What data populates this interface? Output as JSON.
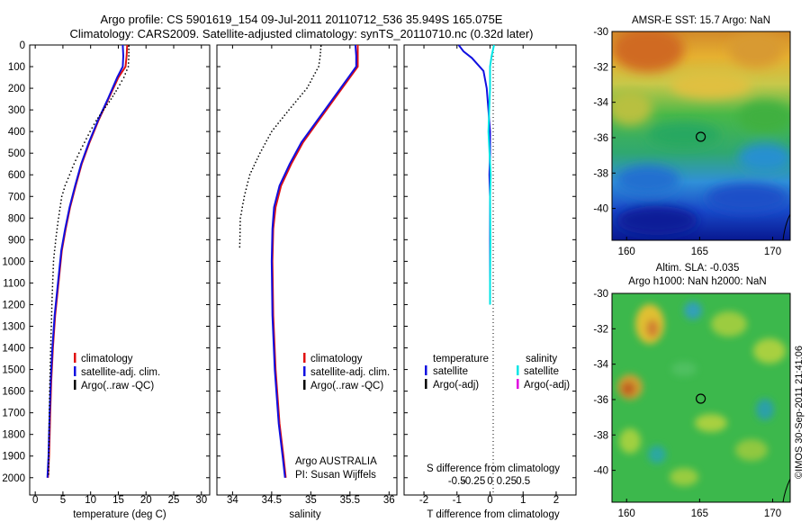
{
  "header": {
    "line1": "Argo profile: CS 5901619_154 09-Jul-2011 20110712_536 35.949S 165.075E",
    "line2": "Climatology: CARS2009. Satellite-adjusted climatology: synTS_20110710.nc (0.32d later)"
  },
  "colors": {
    "climatology": "#e01010",
    "satellite": "#1010e0",
    "argo": "#000000",
    "satellite_salinity": "#00e5e5",
    "argo_salinity": "#e000e0"
  },
  "chart_data": [
    {
      "id": "temperature",
      "type": "line",
      "xlabel": "temperature (deg C)",
      "ylabel": "",
      "xlim": [
        -1,
        31.5
      ],
      "ylim": [
        2080,
        0
      ],
      "xticks": [
        "0",
        "5",
        "10",
        "15",
        "20",
        "25",
        "30"
      ],
      "xtick_values": [
        0,
        5,
        10,
        15,
        20,
        25,
        30
      ],
      "yticks": [
        "0",
        "100",
        "200",
        "300",
        "400",
        "500",
        "600",
        "700",
        "800",
        "900",
        "1000",
        "1100",
        "1200",
        "1300",
        "1400",
        "1500",
        "1600",
        "1700",
        "1800",
        "1900",
        "2000"
      ],
      "ytick_values": [
        0,
        100,
        200,
        300,
        400,
        500,
        600,
        700,
        800,
        900,
        1000,
        1100,
        1200,
        1300,
        1400,
        1500,
        1600,
        1700,
        1800,
        1900,
        2000
      ],
      "legend": [
        "climatology",
        "satellite-adj. clim.",
        "Argo(..raw -QC)"
      ],
      "series": [
        {
          "name": "climatology",
          "style": "line",
          "x": [
            16.6,
            16.5,
            16.3,
            15.0,
            13.2,
            11.4,
            9.8,
            8.4,
            7.3,
            6.3,
            5.5,
            4.8,
            4.2,
            3.6,
            3.2,
            2.9,
            2.7,
            2.6,
            2.5,
            2.4,
            2.3
          ],
          "y": [
            0,
            50,
            100,
            150,
            250,
            350,
            450,
            550,
            650,
            750,
            850,
            950,
            1100,
            1250,
            1400,
            1550,
            1700,
            1800,
            1900,
            1950,
            2000
          ]
        },
        {
          "name": "satellite-adj. clim.",
          "style": "line",
          "x": [
            15.8,
            15.9,
            15.8,
            14.8,
            13.1,
            11.3,
            9.7,
            8.3,
            7.2,
            6.2,
            5.4,
            4.7,
            4.1,
            3.5,
            3.1,
            2.8,
            2.6,
            2.5,
            2.4,
            2.3,
            2.2
          ],
          "y": [
            0,
            50,
            100,
            150,
            250,
            350,
            450,
            550,
            650,
            750,
            850,
            950,
            1100,
            1250,
            1400,
            1550,
            1700,
            1800,
            1900,
            1950,
            2000
          ]
        },
        {
          "name": "Argo(..raw -QC)",
          "style": "dots",
          "x": [
            16.9,
            16.9,
            16.8,
            16.0,
            14.9,
            13.7,
            12.3,
            11.0,
            9.9,
            8.9,
            7.9,
            7.0,
            6.2,
            5.4,
            4.8,
            4.2,
            3.7,
            3.3,
            3.0,
            2.8,
            2.6,
            2.5,
            2.4
          ],
          "y": [
            5,
            50,
            100,
            150,
            200,
            250,
            300,
            350,
            400,
            450,
            500,
            550,
            600,
            650,
            700,
            800,
            900,
            1000,
            1200,
            1400,
            1600,
            1800,
            2000
          ]
        }
      ]
    },
    {
      "id": "salinity",
      "type": "line",
      "xlabel": "salinity",
      "ylabel": "",
      "xlim": [
        33.8,
        36.1
      ],
      "ylim": [
        2080,
        0
      ],
      "xticks": [
        "34",
        "34.5",
        "35",
        "35.5",
        "36"
      ],
      "xtick_values": [
        34,
        34.5,
        35,
        35.5,
        36
      ],
      "legend": [
        "climatology",
        "satellite-adj. clim.",
        "Argo(..raw -QC)"
      ],
      "annotation": [
        "Argo AUSTRALIA",
        "PI: Susan Wijffels"
      ],
      "series": [
        {
          "name": "climatology",
          "style": "line",
          "x": [
            35.6,
            35.6,
            35.6,
            35.5,
            35.3,
            35.1,
            34.9,
            34.75,
            34.62,
            34.55,
            34.52,
            34.51,
            34.52,
            34.55,
            34.6,
            34.65,
            34.68
          ],
          "y": [
            0,
            50,
            100,
            150,
            250,
            350,
            450,
            550,
            650,
            750,
            850,
            1000,
            1250,
            1500,
            1750,
            1900,
            2000
          ]
        },
        {
          "name": "satellite-adj. clim.",
          "style": "line",
          "x": [
            35.57,
            35.58,
            35.58,
            35.48,
            35.28,
            35.08,
            34.88,
            34.73,
            34.6,
            34.53,
            34.51,
            34.5,
            34.51,
            34.54,
            34.59,
            34.64,
            34.67
          ],
          "y": [
            0,
            50,
            100,
            150,
            250,
            350,
            450,
            550,
            650,
            750,
            850,
            1000,
            1250,
            1500,
            1750,
            1900,
            2000
          ]
        },
        {
          "name": "Argo(..raw -QC)",
          "style": "dots",
          "x": [
            35.13,
            35.12,
            35.1,
            34.95,
            34.72,
            34.5,
            34.35,
            34.22,
            34.15,
            34.1,
            34.09
          ],
          "y": [
            5,
            50,
            100,
            200,
            300,
            400,
            500,
            600,
            700,
            800,
            950
          ]
        }
      ]
    },
    {
      "id": "difference",
      "type": "line",
      "xlabel": "T difference from climatology",
      "xlabel_top": "S difference from climatology",
      "ylabel": "",
      "xlim": [
        -2.6,
        2.6
      ],
      "ylim": [
        2080,
        0
      ],
      "xticks": [
        "-2",
        "-1",
        "0",
        "1",
        "2"
      ],
      "xtick_values": [
        -2,
        -1,
        0,
        1,
        2
      ],
      "sticks": [
        "-0.5",
        "-0.25",
        "0",
        "0.25",
        "0.5"
      ],
      "stick_values": [
        -0.5,
        -0.25,
        0,
        0.25,
        0.5
      ],
      "legend_titles": [
        "temperature",
        "salinity"
      ],
      "legend": [
        "satellite",
        "Argo(-adj)",
        "satellite",
        "Argo(-adj)"
      ],
      "series": [
        {
          "name": "temperature satellite",
          "style": "line",
          "x": [
            -0.95,
            -0.8,
            -0.55,
            -0.2,
            -0.1,
            -0.05,
            0.0,
            0.0,
            -0.02,
            0.0,
            0.0,
            0.0,
            0.0
          ],
          "y": [
            0,
            30,
            60,
            120,
            200,
            300,
            400,
            500,
            600,
            700,
            900,
            1100,
            1200
          ]
        },
        {
          "name": "salinity satellite",
          "style": "line",
          "x": [
            0.12,
            0.05,
            0.0,
            0.0,
            -0.05,
            0.02,
            0.0,
            0.01,
            0.0,
            0.0
          ],
          "y": [
            0,
            50,
            100,
            200,
            400,
            600,
            700,
            900,
            1100,
            1200
          ]
        }
      ]
    },
    {
      "id": "sst-map",
      "type": "heatmap",
      "title": "AMSR-E SST: 15.7 Argo: NaN",
      "xticks": [
        "160",
        "165",
        "170"
      ],
      "xtick_values": [
        160,
        165,
        170
      ],
      "yticks": [
        "-30",
        "-32",
        "-34",
        "-36",
        "-38",
        "-40"
      ],
      "ytick_values": [
        -30,
        -32,
        -34,
        -36,
        -38,
        -40
      ],
      "xlim": [
        159,
        171.2
      ],
      "ylim": [
        -41.8,
        -30
      ],
      "marker": {
        "lon": 165.075,
        "lat": -35.949
      }
    },
    {
      "id": "sla-map",
      "type": "heatmap",
      "title_line1": "Altim. SLA: -0.035",
      "title_line2": "Argo h1000: NaN h2000: NaN",
      "xticks": [
        "160",
        "165",
        "170"
      ],
      "xtick_values": [
        160,
        165,
        170
      ],
      "yticks": [
        "-30",
        "-32",
        "-34",
        "-36",
        "-38",
        "-40"
      ],
      "ytick_values": [
        -30,
        -32,
        -34,
        -36,
        -38,
        -40
      ],
      "xlim": [
        159,
        171.2
      ],
      "ylim": [
        -41.8,
        -30
      ],
      "marker": {
        "lon": 165.075,
        "lat": -35.949
      }
    }
  ],
  "footer": {
    "stamp": "©IMOS 30-Sep-2011 21:41:06"
  }
}
